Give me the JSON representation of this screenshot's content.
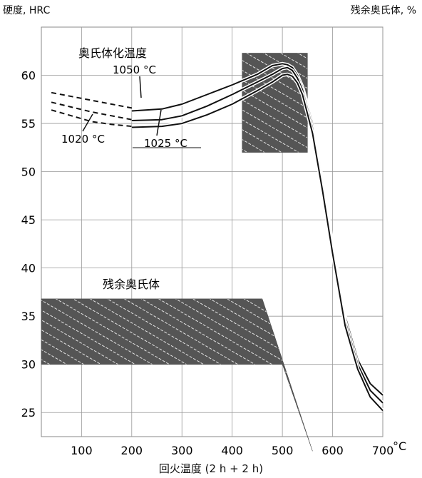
{
  "chart_data": {
    "type": "line",
    "ylabel_left": "硬度, HRC",
    "ylabel_right": "残余奥氏体, %",
    "xlabel": "回火温度 (2 h + 2 h)",
    "x_unit": "°C",
    "xlim": [
      20,
      700
    ],
    "ylim": [
      22.5,
      65
    ],
    "x_ticks": [
      "100",
      "200",
      "300",
      "400",
      "500",
      "600",
      "700"
    ],
    "y_ticks": [
      "25",
      "30",
      "35",
      "40",
      "45",
      "50",
      "55",
      "60"
    ],
    "grid": true,
    "austenitizing_title": "奥氏体化温度",
    "series": [
      {
        "name": "1050 °C",
        "x": [
          200,
          260,
          300,
          350,
          400,
          450,
          480,
          500,
          510,
          520,
          530,
          540,
          560,
          580,
          600,
          625,
          650,
          675,
          700
        ],
        "y": [
          56.3,
          56.5,
          57.0,
          58.0,
          59.0,
          60.1,
          61.0,
          61.2,
          61.1,
          60.8,
          60.0,
          58.8,
          55.0,
          49.0,
          42.5,
          35.0,
          30.5,
          28.0,
          26.8
        ]
      },
      {
        "name": "1025 °C",
        "x": [
          200,
          260,
          300,
          350,
          400,
          450,
          480,
          500,
          510,
          520,
          530,
          540,
          560,
          580,
          600,
          625,
          650,
          675,
          700
        ],
        "y": [
          55.3,
          55.4,
          55.8,
          56.8,
          58.0,
          59.3,
          60.1,
          60.7,
          60.8,
          60.5,
          59.7,
          58.5,
          54.5,
          48.5,
          42.0,
          34.5,
          30.0,
          27.3,
          26.0
        ]
      },
      {
        "name": "1020 °C",
        "x": [
          200,
          260,
          300,
          350,
          400,
          450,
          480,
          500,
          510,
          520,
          530,
          540,
          560,
          580,
          600,
          625,
          650,
          675,
          700
        ],
        "y": [
          54.6,
          54.7,
          55.0,
          55.9,
          57.0,
          58.4,
          59.3,
          60.0,
          60.1,
          59.9,
          59.2,
          58.0,
          54.0,
          48.0,
          41.5,
          34.0,
          29.5,
          26.6,
          25.2
        ]
      }
    ],
    "dashed_series": [
      {
        "x": [
          40,
          80,
          120,
          160,
          200
        ],
        "y": [
          58.2,
          57.8,
          57.4,
          57.0,
          56.6
        ]
      },
      {
        "x": [
          40,
          80,
          120,
          160,
          200
        ],
        "y": [
          57.2,
          56.7,
          56.2,
          55.8,
          55.4
        ]
      },
      {
        "x": [
          40,
          80,
          120,
          160,
          200
        ],
        "y": [
          56.4,
          55.8,
          55.2,
          54.9,
          54.7
        ]
      }
    ],
    "annotations": {
      "a1050": "1050 °C",
      "a1020": "1020 °C",
      "a1025": "1025 °C",
      "retained_austenite": "残余奥氏体"
    },
    "retained_austenite_band": {
      "upper": {
        "x": [
          20,
          460,
          560
        ],
        "y": [
          36.8,
          36.8,
          21.0
        ]
      },
      "lower": {
        "x": [
          20,
          500,
          560
        ],
        "y": [
          30.0,
          30.0,
          21.0
        ]
      }
    },
    "secondary_hardness_box": {
      "x": [
        420,
        550
      ],
      "y": [
        52.0,
        62.3
      ]
    }
  }
}
